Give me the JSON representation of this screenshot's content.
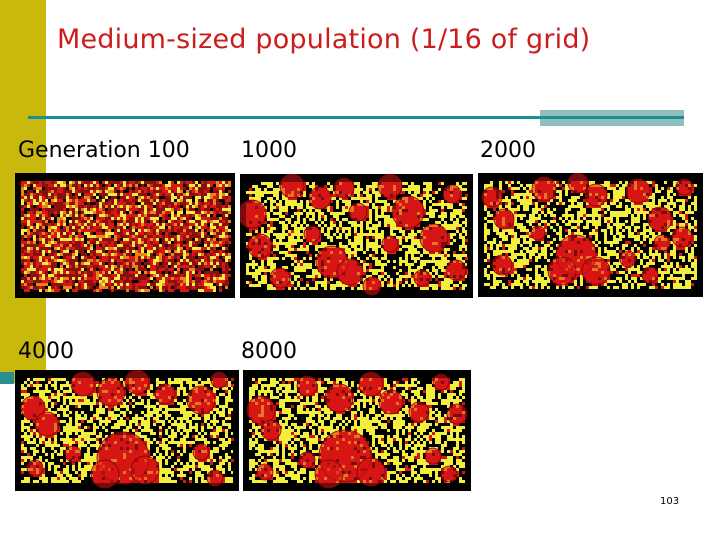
{
  "slide": {
    "title": "Medium-sized population (1/16 of grid)",
    "page_number": "103",
    "colors": {
      "title": "#cc1c1c",
      "accent_bar": "#c8b90c",
      "rule": "#1f8e92",
      "cell_red": "#d81616",
      "cell_yellow": "#f2ee3c",
      "background_black": "#000000"
    }
  },
  "panels": [
    {
      "label": "Generation 100",
      "state": "noise"
    },
    {
      "label": "1000",
      "state": "clusters"
    },
    {
      "label": "2000",
      "state": "clusters"
    },
    {
      "label": "4000",
      "state": "clusters"
    },
    {
      "label": "8000",
      "state": "clusters"
    }
  ]
}
